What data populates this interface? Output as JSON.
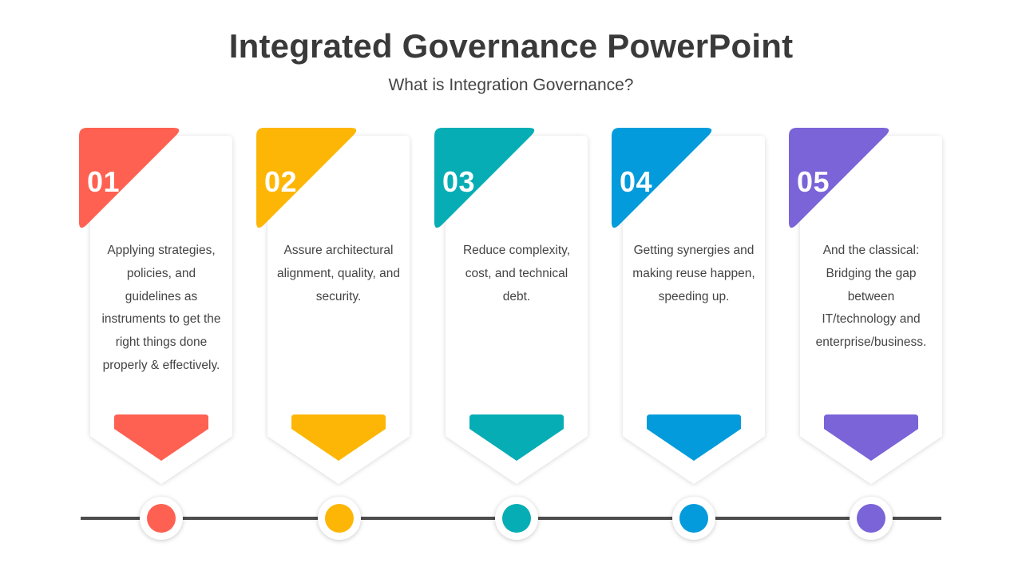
{
  "title": "Integrated Governance PowerPoint",
  "subtitle": "What is Integration Governance?",
  "cards": [
    {
      "number": "01",
      "text": "Applying strategies, policies, and guidelines as instruments to get the right things done properly & effectively.",
      "color": "#fe6152"
    },
    {
      "number": "02",
      "text": "Assure architectural alignment, quality, and security.",
      "color": "#fdb606"
    },
    {
      "number": "03",
      "text": "Reduce complexity, cost, and technical debt.",
      "color": "#06adb4"
    },
    {
      "number": "04",
      "text": "Getting synergies and making reuse happen, speeding up.",
      "color": "#039bdb"
    },
    {
      "number": "05",
      "text": "And the classical: Bridging the gap between IT/technology and enterprise/business.",
      "color": "#7b63d8"
    }
  ],
  "timeline_color": "#4d4d4d"
}
